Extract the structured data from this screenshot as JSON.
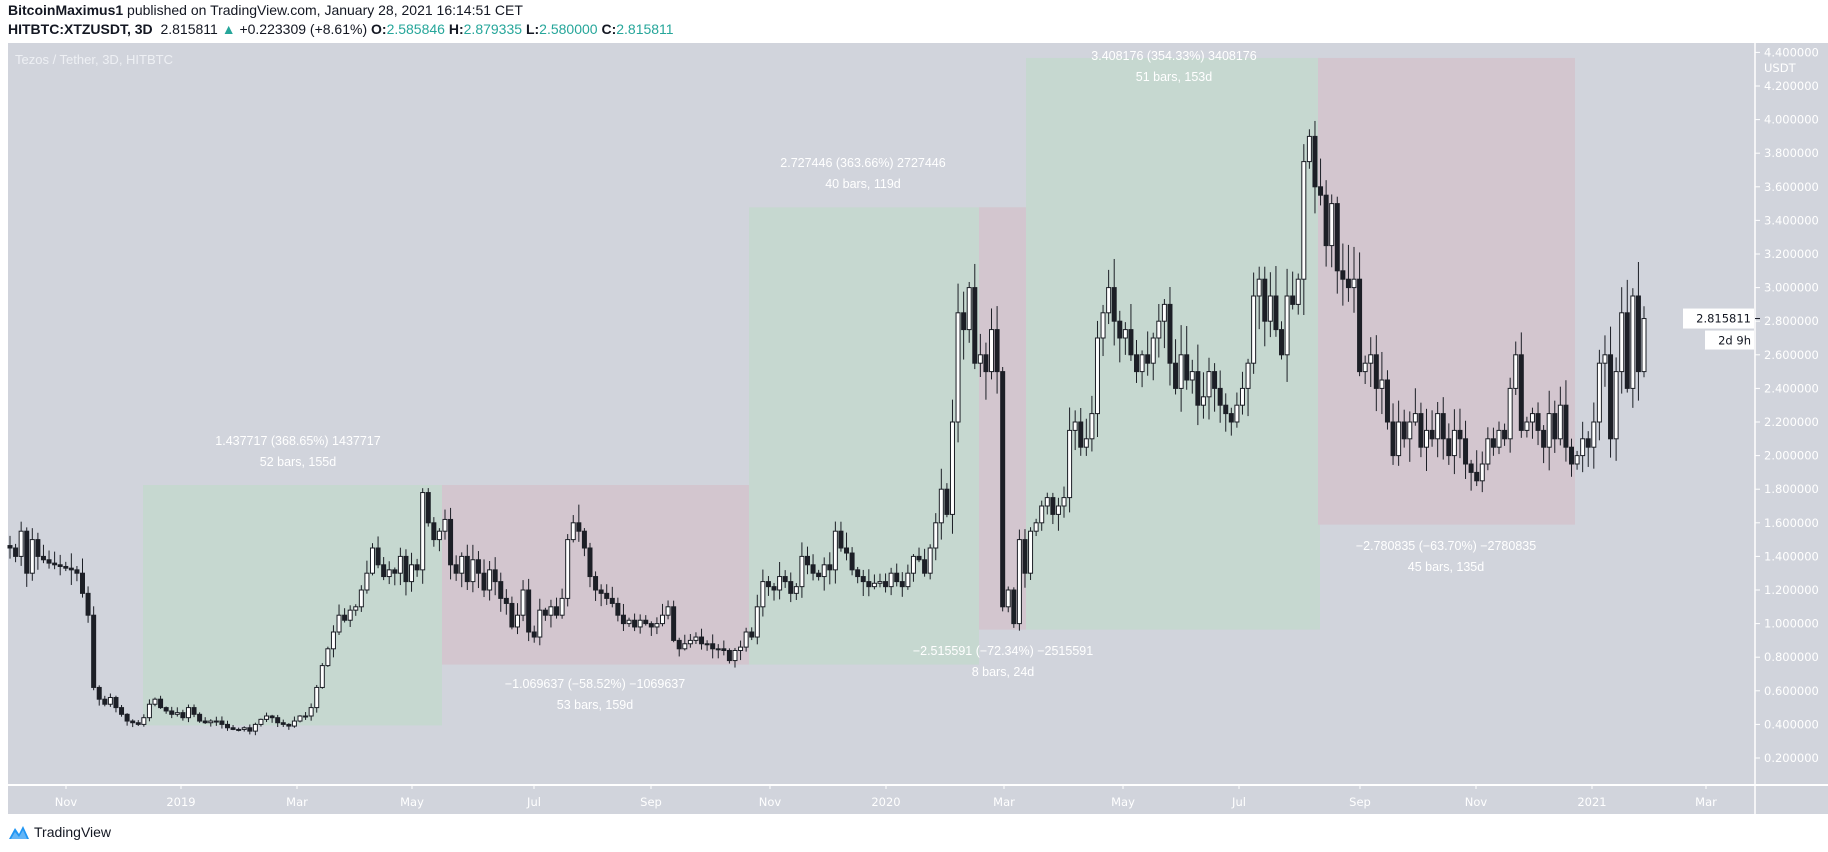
{
  "header": {
    "author": "BitcoinMaximus1",
    "published": " published on TradingView.com, January 28, 2021 16:14:51 CET",
    "symbol": "HITBTC:XTZUSDT, 3D",
    "last": "2.815811",
    "change": "+0.223309 (+8.61%)",
    "o_label": "O:",
    "o": "2.585846",
    "h_label": "H:",
    "h": "2.879335",
    "l_label": "L:",
    "l": "2.580000",
    "c_label": "C:",
    "c": "2.815811",
    "up_icon": "triangle-up-icon"
  },
  "chart_title": "Tezos / Tether, 3D, HITBTC",
  "footer": {
    "brand": "TradingView"
  },
  "colors": {
    "background": "#d1d4dc",
    "accent": "#26a69a",
    "gain_box": "#c6d8d0",
    "loss_box": "#d3c6cf",
    "candle_down": "#1c1f26",
    "candle_up": "#ffffff"
  },
  "chart_data": {
    "type": "candlestick",
    "interval": "3D",
    "currency": "USDT",
    "ylim": [
      0,
      4.4
    ],
    "y_ticks": [
      "4.400000",
      "4.200000",
      "4.000000",
      "3.800000",
      "3.600000",
      "3.400000",
      "3.200000",
      "3.000000",
      "2.800000",
      "2.600000",
      "2.400000",
      "2.200000",
      "2.000000",
      "1.800000",
      "1.600000",
      "1.400000",
      "1.200000",
      "1.000000",
      "0.800000",
      "0.600000",
      "0.400000",
      "0.200000"
    ],
    "x_ticks": [
      "Nov",
      "2019",
      "Mar",
      "May",
      "Jul",
      "Sep",
      "Nov",
      "2020",
      "Mar",
      "May",
      "Jul",
      "Sep",
      "Nov",
      "2021",
      "Mar"
    ],
    "last_price_label": "2.815811",
    "countdown": "2d 9h",
    "closes": [
      1.45,
      1.4,
      1.55,
      1.3,
      1.5,
      1.4,
      1.38,
      1.36,
      1.35,
      1.34,
      1.33,
      1.32,
      1.3,
      1.18,
      1.05,
      0.62,
      0.55,
      0.52,
      0.56,
      0.5,
      0.46,
      0.42,
      0.41,
      0.4,
      0.44,
      0.52,
      0.55,
      0.5,
      0.48,
      0.46,
      0.47,
      0.44,
      0.5,
      0.46,
      0.42,
      0.41,
      0.42,
      0.42,
      0.4,
      0.38,
      0.37,
      0.37,
      0.38,
      0.36,
      0.4,
      0.43,
      0.45,
      0.44,
      0.41,
      0.4,
      0.39,
      0.42,
      0.45,
      0.45,
      0.5,
      0.62,
      0.75,
      0.85,
      0.95,
      1.05,
      1.02,
      1.08,
      1.1,
      1.2,
      1.3,
      1.45,
      1.35,
      1.28,
      1.32,
      1.3,
      1.4,
      1.25,
      1.35,
      1.32,
      1.78,
      1.6,
      1.5,
      1.55,
      1.62,
      1.35,
      1.3,
      1.4,
      1.25,
      1.38,
      1.3,
      1.2,
      1.32,
      1.25,
      1.15,
      1.12,
      0.98,
      1.05,
      1.2,
      0.95,
      0.92,
      1.08,
      1.05,
      1.1,
      1.05,
      1.15,
      1.5,
      1.6,
      1.55,
      1.45,
      1.28,
      1.2,
      1.18,
      1.15,
      1.12,
      1.05,
      1.0,
      1.02,
      0.98,
      1.02,
      1.0,
      0.98,
      1.0,
      1.05,
      1.1,
      0.9,
      0.85,
      0.88,
      0.9,
      0.92,
      0.88,
      0.88,
      0.85,
      0.85,
      0.84,
      0.78,
      0.84,
      0.86,
      0.95,
      0.92,
      1.1,
      1.25,
      1.22,
      1.2,
      1.28,
      1.25,
      1.18,
      1.22,
      1.4,
      1.35,
      1.3,
      1.28,
      1.35,
      1.32,
      1.55,
      1.45,
      1.42,
      1.32,
      1.28,
      1.25,
      1.22,
      1.24,
      1.25,
      1.22,
      1.3,
      1.25,
      1.22,
      1.3,
      1.4,
      1.38,
      1.3,
      1.45,
      1.6,
      1.8,
      1.65,
      2.2,
      2.85,
      2.75,
      3.0,
      2.55,
      2.6,
      2.5,
      2.75,
      2.5,
      1.1,
      1.2,
      1.0,
      1.5,
      1.3,
      1.55,
      1.6,
      1.7,
      1.75,
      1.65,
      1.7,
      1.75,
      2.15,
      2.2,
      2.05,
      2.1,
      2.25,
      2.7,
      2.85,
      3.0,
      2.8,
      2.7,
      2.75,
      2.6,
      2.5,
      2.6,
      2.55,
      2.7,
      2.8,
      2.9,
      2.55,
      2.4,
      2.6,
      2.45,
      2.5,
      2.3,
      2.35,
      2.5,
      2.4,
      2.3,
      2.25,
      2.2,
      2.3,
      2.4,
      2.55,
      2.95,
      3.05,
      2.8,
      2.95,
      2.75,
      2.6,
      2.95,
      2.9,
      3.05,
      3.75,
      3.9,
      3.6,
      3.55,
      3.25,
      3.5,
      3.1,
      3.05,
      3.0,
      3.05,
      2.5,
      2.55,
      2.6,
      2.4,
      2.45,
      2.2,
      2.0,
      2.2,
      2.1,
      2.2,
      2.25,
      2.05,
      2.15,
      2.1,
      2.25,
      2.1,
      2.0,
      2.15,
      2.1,
      1.95,
      1.9,
      1.85,
      1.95,
      2.1,
      2.05,
      2.15,
      2.1,
      2.4,
      2.6,
      2.15,
      2.2,
      2.25,
      2.15,
      2.05,
      2.25,
      2.1,
      2.3,
      2.05,
      1.95,
      2.0,
      2.1,
      2.05,
      2.2,
      2.55,
      2.6,
      2.1,
      2.5,
      2.85,
      2.4,
      2.95,
      2.5,
      2.815811
    ],
    "measurements": [
      {
        "kind": "gain",
        "from": 0.394,
        "to": 1.825,
        "line1": "1.437717 (368.65%) 1437717",
        "line2": "52 bars, 155d"
      },
      {
        "kind": "loss",
        "from": 1.825,
        "to": 0.756,
        "line1": "−1.069637 (−58.52%) −1069637",
        "line2": "53 bars, 159d"
      },
      {
        "kind": "gain",
        "from": 0.756,
        "to": 3.478,
        "line1": "2.727446 (363.66%) 2727446",
        "line2": "40 bars, 119d"
      },
      {
        "kind": "loss",
        "from": 3.478,
        "to": 0.964,
        "line1": "−2.515591 (−72.34%) −2515591",
        "line2": "8 bars, 24d"
      },
      {
        "kind": "gain",
        "from": 0.964,
        "to": 4.367,
        "line1": "3.408176 (354.33%) 3408176",
        "line2": "51 bars, 153d"
      },
      {
        "kind": "loss",
        "from": 4.367,
        "to": 1.589,
        "line1": "−2.780835 (−63.70%) −2780835",
        "line2": "45 bars, 135d"
      }
    ]
  }
}
